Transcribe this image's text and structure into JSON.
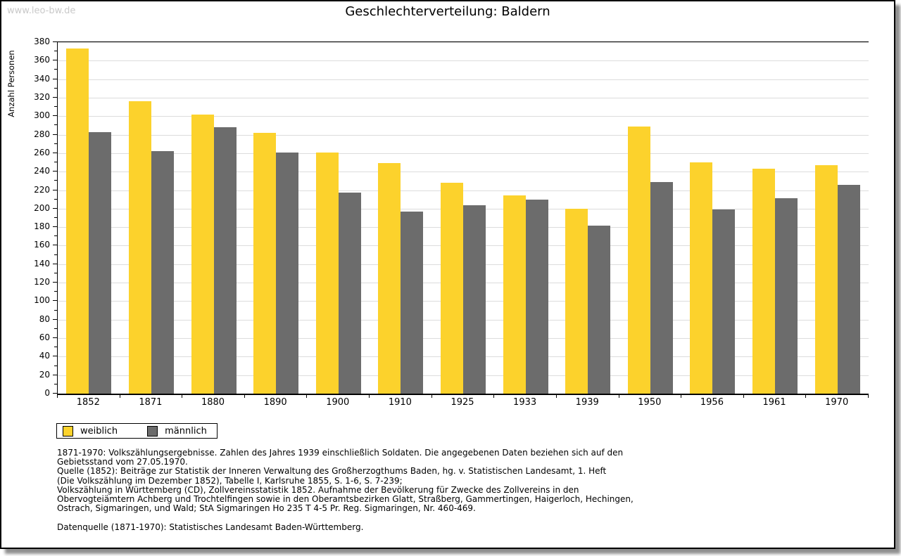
{
  "watermark": "www.leo-bw.de",
  "chart_data": {
    "type": "bar",
    "title": "Geschlechterverteilung: Baldern",
    "xlabel": "",
    "ylabel": "Anzahl Personen",
    "ylim": [
      0,
      380
    ],
    "ytick_major_step": 20,
    "ytick_minor_step": 10,
    "grid": true,
    "legend_position": "bottom-left",
    "categories": [
      "1852",
      "1871",
      "1880",
      "1890",
      "1900",
      "1910",
      "1925",
      "1933",
      "1939",
      "1950",
      "1956",
      "1961",
      "1970"
    ],
    "series": [
      {
        "name": "weiblich",
        "color": "#fcd22c",
        "values": [
          373,
          316,
          302,
          282,
          261,
          249,
          228,
          214,
          200,
          289,
          250,
          243,
          247
        ]
      },
      {
        "name": "männlich",
        "color": "#6c6c6c",
        "values": [
          283,
          262,
          288,
          261,
          217,
          197,
          204,
          210,
          182,
          229,
          199,
          211,
          226
        ]
      }
    ]
  },
  "footnotes": {
    "lines": [
      "1871-1970: Volkszählungsergebnisse. Zahlen des Jahres 1939 einschließlich Soldaten. Die angegebenen Daten beziehen sich auf den",
      "Gebietsstand vom 27.05.1970.",
      "Quelle (1852): Beiträge zur Statistik der Inneren Verwaltung des Großherzogthums Baden, hg. v. Statistischen Landesamt, 1. Heft",
      "(Die Volkszählung im Dezember 1852), Tabelle I, Karlsruhe 1855, S. 1-6, S. 7-239;",
      "Volkszählung in Württemberg (CD), Zollvereinsstatistik 1852. Aufnahme der Bevölkerung für Zwecke des Zollvereins in den",
      "Obervogteiämtern Achberg und Trochtelfingen sowie in den Oberamtsbezirken Glatt, Straßberg, Gammertingen, Haigerloch, Hechingen,",
      "Ostrach, Sigmaringen, und Wald; StA Sigmaringen Ho 235 T 4-5 Pr. Reg. Sigmaringen, Nr. 460-469.",
      "",
      "Datenquelle (1871-1970): Statistisches Landesamt Baden-Württemberg."
    ]
  },
  "colors": {
    "grid": "#dcdcdc",
    "axis": "#000000",
    "watermark": "#c9c9c9"
  }
}
